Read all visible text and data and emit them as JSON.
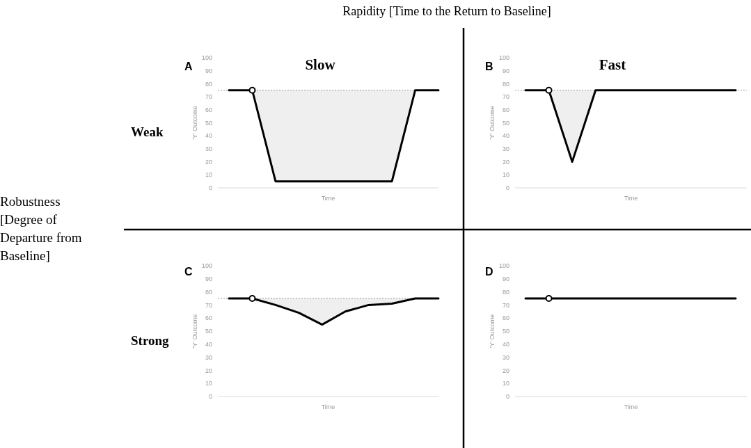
{
  "chart_data": [
    {
      "type": "line",
      "title": "Slow",
      "xlabel": "Time",
      "ylabel": "'Y' Outcome",
      "categories": [
        null,
        null,
        null,
        null,
        null,
        null,
        null,
        null,
        null,
        null
      ],
      "ylim": [
        0,
        100
      ],
      "yticks": [
        0,
        10,
        20,
        30,
        40,
        50,
        60,
        70,
        80,
        90,
        100
      ],
      "tick_labels": "y",
      "annotations": [
        "A",
        "Rapidity [Time to the Return to Baseline]",
        "Weak",
        "Robustness [Degree of Departure from Baseline]"
      ],
      "ref_lines": [
        {
          "axis": "y",
          "value": 75,
          "color": "#999999",
          "line_style": "dotted"
        }
      ],
      "series": [
        {
          "color": "#000000",
          "values": [
            75,
            75,
            5,
            5,
            5,
            5,
            5,
            5,
            75,
            75
          ],
          "lower": [
            75,
            75,
            5,
            5,
            5,
            5,
            5,
            5,
            75,
            75
          ],
          "upper": [
            75,
            75,
            75,
            75,
            75,
            75,
            75,
            75,
            75,
            75
          ]
        },
        {
          "type": "scatter",
          "color": "#000000",
          "marker": "circle",
          "values": [
            null,
            75,
            null,
            null,
            null,
            null,
            null,
            null,
            null,
            null
          ]
        }
      ]
    },
    {
      "type": "line",
      "title": "Fast",
      "xlabel": "Time",
      "ylabel": "'Y' Outcome",
      "categories": [
        null,
        null,
        null,
        null,
        null,
        null,
        null,
        null,
        null,
        null
      ],
      "ylim": [
        0,
        100
      ],
      "yticks": [
        0,
        10,
        20,
        30,
        40,
        50,
        60,
        70,
        80,
        90,
        100
      ],
      "tick_labels": "y",
      "annotations": [
        "B"
      ],
      "ref_lines": [
        {
          "axis": "y",
          "value": 75,
          "color": "#999999",
          "line_style": "dotted"
        }
      ],
      "series": [
        {
          "color": "#000000",
          "values": [
            75,
            75,
            20,
            75,
            75,
            75,
            75,
            75,
            75,
            75
          ],
          "lower": [
            75,
            75,
            20,
            75,
            75,
            75,
            75,
            75,
            75,
            75
          ],
          "upper": [
            75,
            75,
            75,
            75,
            75,
            75,
            75,
            75,
            75,
            75
          ]
        },
        {
          "type": "scatter",
          "color": "#000000",
          "marker": "circle",
          "values": [
            null,
            75,
            null,
            null,
            null,
            null,
            null,
            null,
            null,
            null
          ]
        }
      ]
    },
    {
      "type": "line",
      "xlabel": "Time",
      "ylabel": "'Y' Outcome",
      "categories": [
        null,
        null,
        null,
        null,
        null,
        null,
        null,
        null,
        null,
        null
      ],
      "ylim": [
        0,
        100
      ],
      "yticks": [
        0,
        10,
        20,
        30,
        40,
        50,
        60,
        70,
        80,
        90,
        100
      ],
      "tick_labels": "y",
      "annotations": [
        "C",
        "Strong"
      ],
      "ref_lines": [
        {
          "axis": "y",
          "value": 75,
          "color": "#999999",
          "line_style": "dotted"
        }
      ],
      "series": [
        {
          "color": "#000000",
          "values": [
            75,
            75,
            70,
            64,
            55,
            65,
            70,
            71,
            75,
            75
          ],
          "lower": [
            75,
            75,
            70,
            64,
            55,
            65,
            70,
            71,
            75,
            75
          ],
          "upper": [
            75,
            75,
            75,
            75,
            75,
            75,
            75,
            75,
            75,
            75
          ]
        },
        {
          "type": "scatter",
          "color": "#000000",
          "marker": "circle",
          "values": [
            null,
            75,
            null,
            null,
            null,
            null,
            null,
            null,
            null,
            null
          ]
        }
      ]
    },
    {
      "type": "line",
      "xlabel": "Time",
      "ylabel": "'Y' Outcome",
      "categories": [
        null,
        null,
        null,
        null,
        null,
        null,
        null,
        null,
        null,
        null
      ],
      "ylim": [
        0,
        100
      ],
      "yticks": [
        0,
        10,
        20,
        30,
        40,
        50,
        60,
        70,
        80,
        90,
        100
      ],
      "tick_labels": "y",
      "annotations": [
        "D"
      ],
      "series": [
        {
          "color": "#000000",
          "values": [
            75,
            75,
            75,
            75,
            75,
            75,
            75,
            75,
            75,
            75
          ]
        },
        {
          "type": "scatter",
          "color": "#000000",
          "marker": "circle",
          "values": [
            null,
            75,
            null,
            null,
            null,
            null,
            null,
            null,
            null,
            null
          ]
        }
      ]
    }
  ]
}
